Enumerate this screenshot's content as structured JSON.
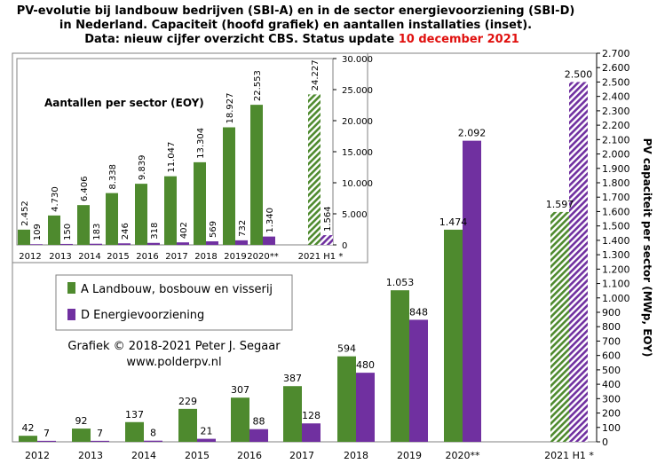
{
  "title_lines": [
    "PV-evolutie bij landbouw bedrijven (SBI-A) en in de sector energievoorziening (SBI-D)",
    "in Nederland. Capaciteit (hoofd grafiek) en aantallen installaties (inset)."
  ],
  "title_line3_prefix": "Data: nieuw cijfer overzicht CBS. Status update ",
  "title_line3_date": "10 december 2021",
  "colors": {
    "green": "#4e8a2e",
    "purple": "#7030a0",
    "hatch_green": "#4e8a2e",
    "hatch_purple": "#7030a0",
    "date_red": "#e0100e"
  },
  "legend": {
    "a_label": "A Landbouw, bosbouw en visserij",
    "d_label": "D Energievoorziening"
  },
  "copyright": {
    "line1": "Grafiek © 2018-2021 Peter J. Segaar",
    "line2": "www.polderpv.nl"
  },
  "chart_data": [
    {
      "type": "bar",
      "categories": [
        "2012",
        "2013",
        "2014",
        "2015",
        "2016",
        "2017",
        "2018",
        "2019",
        "2020**",
        "2021 H1 *"
      ],
      "series": [
        {
          "name": "A Landbouw, bosbouw en visserij",
          "values": [
            42,
            92,
            137,
            229,
            307,
            387,
            594,
            1053,
            1474,
            1597
          ],
          "labels": [
            "42",
            "92",
            "137",
            "229",
            "307",
            "387",
            "594",
            "1.053",
            "1.474",
            "1.597"
          ]
        },
        {
          "name": "D Energievoorziening",
          "values": [
            7,
            7,
            8,
            21,
            88,
            128,
            480,
            848,
            2092,
            2500
          ],
          "labels": [
            "7",
            "7",
            "8",
            "21",
            "88",
            "128",
            "480",
            "848",
            "2.092",
            "2.500"
          ]
        }
      ],
      "ylabel": "PV capaciteit per sector (MWp, EOY)",
      "ylim": [
        0,
        2700
      ],
      "ytick_step": 100,
      "yaxis_side": "right",
      "tick_labels": [
        "0",
        "100",
        "200",
        "300",
        "400",
        "500",
        "600",
        "700",
        "800",
        "900",
        "1.000",
        "1.100",
        "1.200",
        "1.300",
        "1.400",
        "1.500",
        "1.600",
        "1.700",
        "1.800",
        "1.900",
        "2.000",
        "2.100",
        "2.200",
        "2.300",
        "2.400",
        "2.500",
        "2.600",
        "2.700"
      ]
    },
    {
      "type": "bar",
      "title": "Aantallen per sector (EOY)",
      "categories": [
        "2012",
        "2013",
        "2014",
        "2015",
        "2016",
        "2017",
        "2018",
        "2019",
        "2020**",
        "2021 H1 *"
      ],
      "series": [
        {
          "name": "A Landbouw, bosbouw en visserij",
          "values": [
            2452,
            4730,
            6406,
            8338,
            9839,
            11047,
            13304,
            18927,
            22553,
            24227
          ],
          "labels": [
            "2.452",
            "4.730",
            "6.406",
            "8.338",
            "9.839",
            "11.047",
            "13.304",
            "18.927",
            "22.553",
            "24.227"
          ]
        },
        {
          "name": "D Energievoorziening",
          "values": [
            109,
            150,
            183,
            246,
            318,
            402,
            569,
            732,
            1340,
            1564
          ],
          "labels": [
            "109",
            "150",
            "183",
            "246",
            "318",
            "402",
            "569",
            "732",
            "1.340",
            "1.564"
          ]
        }
      ],
      "ylim": [
        0,
        30000
      ],
      "ytick_step": 5000,
      "yaxis_side": "right",
      "tick_labels": [
        "0",
        "5.000",
        "10.000",
        "15.000",
        "20.000",
        "25.000",
        "30.000"
      ]
    }
  ]
}
